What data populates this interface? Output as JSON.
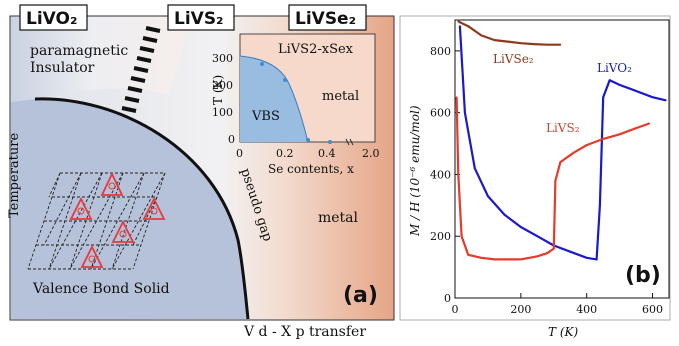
{
  "panel_a": {
    "panel_label": "(a)",
    "compounds": [
      "LiVO₂",
      "LiVS₂",
      "LiVSe₂"
    ],
    "region_paramagnetic": [
      "paramagnetic",
      "Insulator"
    ],
    "region_vbs": "Valence Bond Solid",
    "region_metal": "metal",
    "pseudo_gap": "pseudo gap",
    "y_axis_label": "Temperature",
    "x_axis_label": "V d - X p  transfer",
    "inset": {
      "title": "LiVS2-xSex",
      "ylabel": "T (K)",
      "xlabel": "Se contents, x",
      "vbs_label": "VBS",
      "metal_label": "metal",
      "y_ticks": [
        "0",
        "100",
        "200",
        "300"
      ],
      "x_ticks": [
        "0",
        "0.2",
        "0.4",
        "2.0"
      ]
    },
    "colors": {
      "vbs": "#b8c4dc",
      "metal": "#e9a585",
      "background": "#dfe3ea"
    }
  },
  "panel_b": {
    "panel_label": "(b)",
    "ylabel": "M / H  (10⁻⁶ emu/mol)",
    "xlabel": "T (K)",
    "series_labels": [
      "LiVSe₂",
      "LiVO₂",
      "LiVS₂"
    ],
    "colors": {
      "LiVSe2": "#8b3a1f",
      "LiVO2": "#1a1acc",
      "LiVS2": "#e63a2a"
    }
  },
  "chart_data": {
    "type": "line",
    "xlabel": "T (K)",
    "ylabel": "M / H  (10⁻⁶ emu/mol)",
    "xlim": [
      0,
      650
    ],
    "ylim": [
      0,
      900
    ],
    "x_ticks": [
      0,
      200,
      400,
      600
    ],
    "y_ticks": [
      0,
      200,
      400,
      600,
      800
    ],
    "series": [
      {
        "name": "LiVSe2",
        "x": [
          10,
          40,
          80,
          120,
          160,
          200,
          240,
          280,
          320
        ],
        "y": [
          895,
          880,
          850,
          835,
          830,
          825,
          822,
          820,
          820
        ]
      },
      {
        "name": "LiVO2",
        "x": [
          15,
          30,
          60,
          100,
          150,
          200,
          250,
          300,
          350,
          400,
          430,
          440,
          450,
          470,
          500,
          550,
          600,
          640
        ],
        "y": [
          880,
          600,
          420,
          330,
          270,
          230,
          200,
          170,
          150,
          130,
          125,
          300,
          650,
          705,
          690,
          670,
          650,
          640
        ]
      },
      {
        "name": "LiVS2",
        "x": [
          5,
          10,
          20,
          40,
          80,
          120,
          160,
          200,
          250,
          280,
          300,
          305,
          320,
          360,
          400,
          450,
          500,
          550,
          590
        ],
        "y": [
          650,
          400,
          200,
          140,
          130,
          125,
          125,
          125,
          135,
          145,
          160,
          380,
          440,
          470,
          495,
          515,
          530,
          550,
          565
        ]
      }
    ]
  }
}
